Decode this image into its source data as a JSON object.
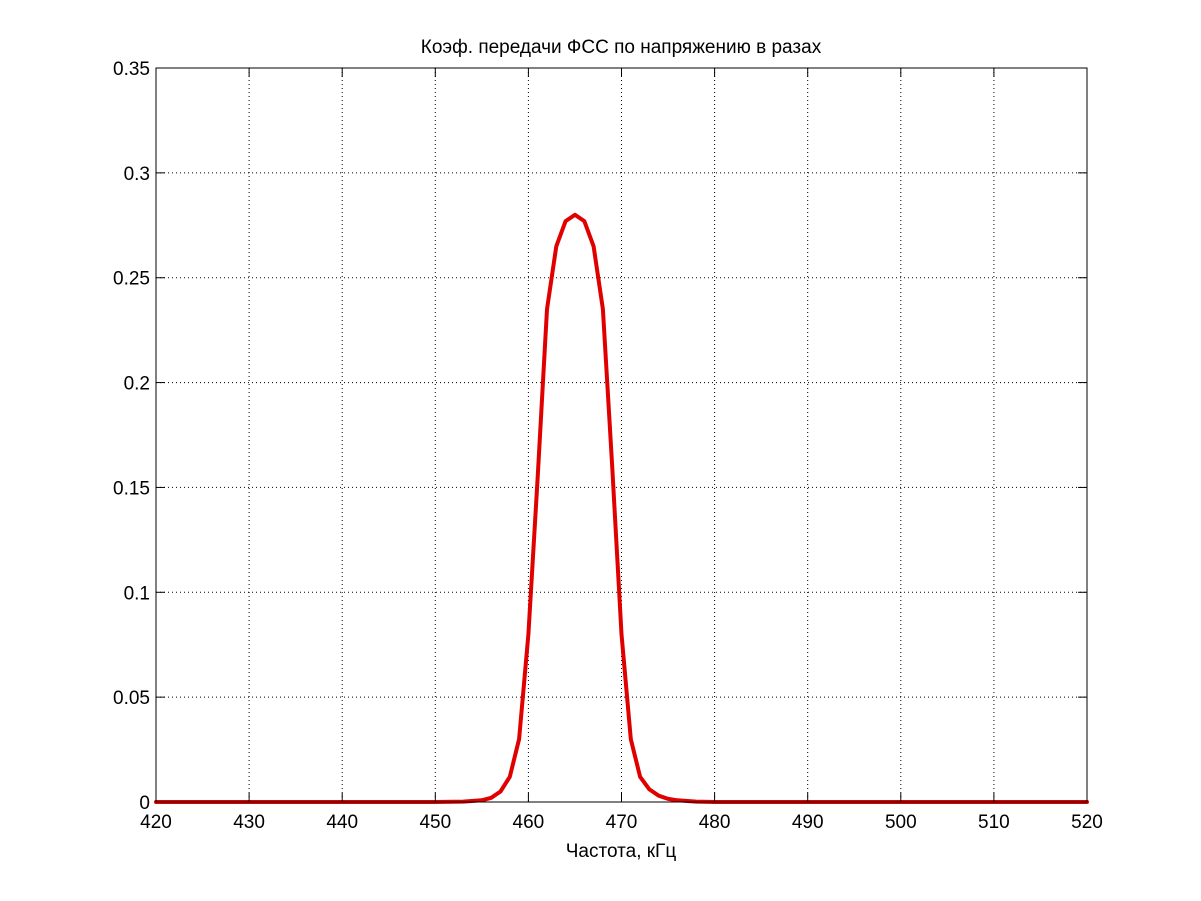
{
  "chart_data": {
    "type": "line",
    "title": "Коэф. передачи ФСС по напряжению в разах",
    "xlabel": "Частота, кГц",
    "ylabel": "",
    "xlim": [
      420,
      520
    ],
    "ylim": [
      0,
      0.35
    ],
    "x_ticks": [
      "420",
      "430",
      "440",
      "450",
      "460",
      "470",
      "480",
      "490",
      "500",
      "510",
      "520"
    ],
    "y_ticks": [
      "0",
      "0.05",
      "0.1",
      "0.15",
      "0.2",
      "0.25",
      "0.3",
      "0.35"
    ],
    "grid": true,
    "legend": "none",
    "series": [
      {
        "color": "#e00000",
        "x": [
          420,
          430,
          440,
          450,
          453,
          455,
          456,
          457,
          458,
          459,
          460,
          461,
          462,
          463,
          464,
          465,
          466,
          467,
          468,
          469,
          470,
          471,
          472,
          473,
          474,
          475,
          476,
          478,
          480,
          490,
          500,
          510,
          520
        ],
        "y": [
          0,
          0,
          0,
          0,
          0.0002,
          0.0008,
          0.002,
          0.005,
          0.012,
          0.03,
          0.08,
          0.155,
          0.235,
          0.265,
          0.277,
          0.28,
          0.277,
          0.265,
          0.235,
          0.16,
          0.08,
          0.03,
          0.012,
          0.006,
          0.003,
          0.0015,
          0.0008,
          0.0002,
          0,
          0,
          0,
          0,
          0
        ]
      }
    ]
  }
}
